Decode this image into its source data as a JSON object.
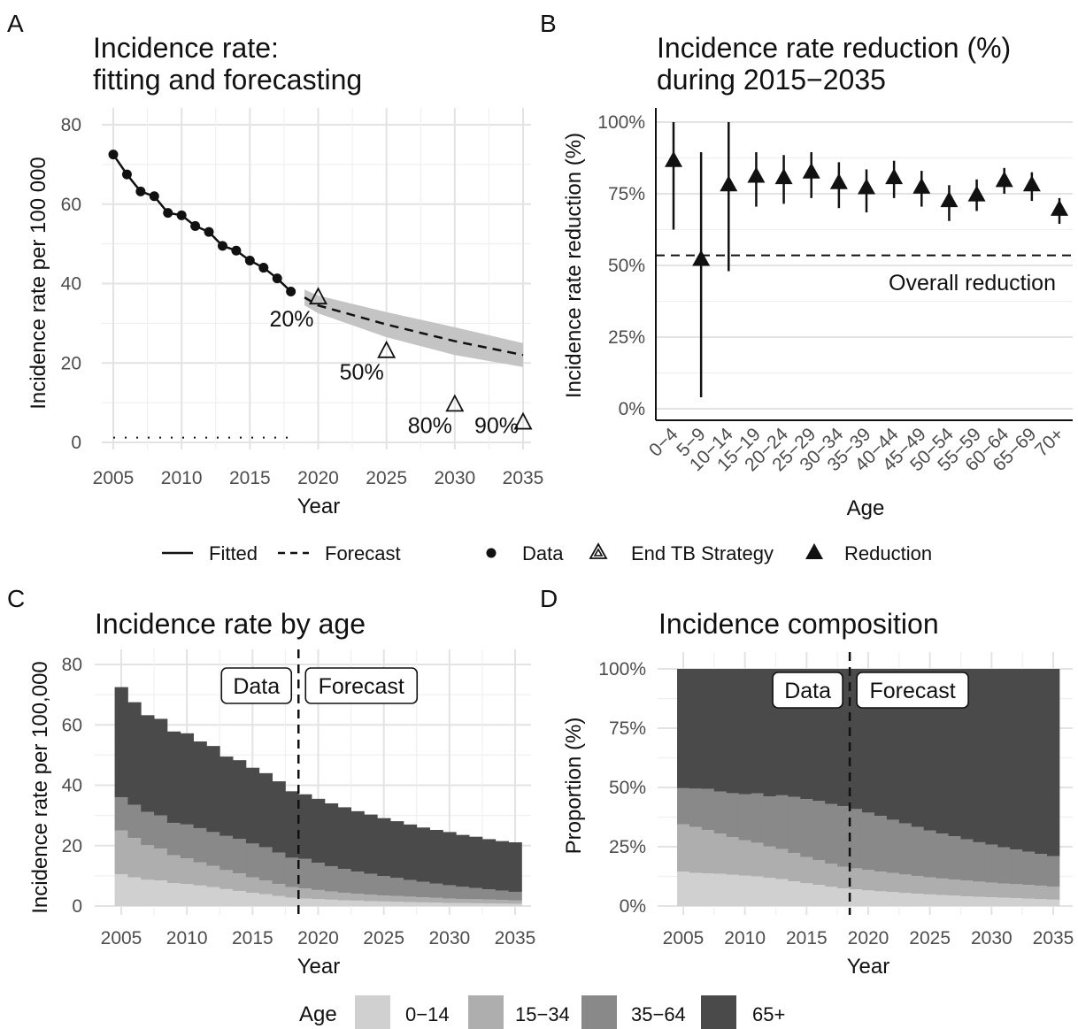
{
  "figure": {
    "panels": [
      {
        "id": "A",
        "letter": "A",
        "title_lines": [
          "Incidence rate:",
          "fitting and forecasting"
        ],
        "xlabel": "Year",
        "ylabel": "Incidence rate per 100 000"
      },
      {
        "id": "B",
        "letter": "B",
        "title_lines": [
          "Incidence rate reduction (%)",
          "during 2015−2035"
        ],
        "xlabel": "Age",
        "ylabel": "Incidence rate reduction (%)"
      },
      {
        "id": "C",
        "letter": "C",
        "title_lines": [
          "Incidence rate by age"
        ],
        "xlabel": "Year",
        "ylabel": "Incidence rate per 100,000"
      },
      {
        "id": "D",
        "letter": "D",
        "title_lines": [
          "Incidence composition"
        ],
        "xlabel": "Year",
        "ylabel": "Proportion (%)"
      }
    ],
    "legend_top": {
      "items": [
        {
          "key": "line-solid",
          "label": "Fitted"
        },
        {
          "key": "line-dashed",
          "label": "Forecast"
        },
        {
          "key": "dot",
          "label": "Data"
        },
        {
          "key": "open-triangle",
          "label": "End TB Strategy"
        },
        {
          "key": "filled-triangle",
          "label": "Reduction"
        }
      ]
    },
    "legend_bottom": {
      "title": "Age",
      "items": [
        {
          "label": "0−14",
          "color": "#d0d0d0"
        },
        {
          "label": "15−34",
          "color": "#aeaeae"
        },
        {
          "label": "35−64",
          "color": "#898989"
        },
        {
          "label": "65+",
          "color": "#4a4a4a"
        }
      ]
    },
    "colors": {
      "grid": "#e3e3e3",
      "ribbon": "#c4c4c4",
      "line": "#111111"
    }
  },
  "chart_data": [
    {
      "panel": "A",
      "type": "line",
      "x_ticks": [
        "2005",
        "2010",
        "2015",
        "2020",
        "2025",
        "2030",
        "2035"
      ],
      "y_ticks": [
        "0",
        "20",
        "40",
        "60",
        "80"
      ],
      "xlim": [
        2005,
        2035
      ],
      "ylim": [
        0,
        80
      ],
      "series": [
        {
          "name": "Data",
          "x": [
            2005,
            2006,
            2007,
            2008,
            2009,
            2010,
            2011,
            2012,
            2013,
            2014,
            2015,
            2016,
            2017,
            2018
          ],
          "y": [
            72.5,
            67.5,
            63.2,
            62.0,
            57.8,
            57.2,
            54.5,
            53.0,
            49.5,
            48.3,
            45.8,
            44.0,
            41.3,
            38.0
          ]
        },
        {
          "name": "Fitted",
          "x": [
            2005,
            2006,
            2007,
            2008,
            2009,
            2010,
            2011,
            2012,
            2013,
            2014,
            2015,
            2016,
            2017,
            2018
          ],
          "y": [
            72.5,
            67.5,
            63.2,
            62.0,
            57.8,
            57.2,
            54.5,
            53.0,
            49.5,
            48.3,
            45.8,
            44.0,
            41.3,
            38.0
          ]
        },
        {
          "name": "Forecast",
          "x": [
            2019,
            2020,
            2025,
            2030,
            2035
          ],
          "y": [
            36.5,
            34.5,
            29.7,
            25.5,
            22.0
          ],
          "lower": [
            34.5,
            32.5,
            26.5,
            22.0,
            19.0
          ],
          "upper": [
            38.5,
            37.0,
            32.8,
            29.0,
            25.0
          ]
        },
        {
          "name": "End TB Strategy",
          "x": [
            2020,
            2025,
            2030,
            2035
          ],
          "y": [
            36.5,
            23.0,
            9.5,
            5.0
          ],
          "labels": [
            "20%",
            "50%",
            "80%",
            "90%"
          ]
        },
        {
          "name": "Dotted baseline",
          "x": [
            2005,
            2018
          ],
          "y": [
            1.2,
            1.2
          ]
        }
      ]
    },
    {
      "panel": "B",
      "type": "scatter",
      "categories": [
        "0−4",
        "5−9",
        "10−14",
        "15−19",
        "20−24",
        "25−29",
        "30−34",
        "35−39",
        "40−44",
        "45−49",
        "50−54",
        "55−59",
        "60−64",
        "65−69",
        "70+"
      ],
      "y_ticks": [
        "0%",
        "25%",
        "50%",
        "75%",
        "100%"
      ],
      "ylim": [
        0,
        100
      ],
      "values": [
        86.5,
        52.0,
        78.0,
        81.0,
        80.5,
        82.5,
        78.8,
        77.0,
        80.5,
        77.2,
        72.5,
        74.5,
        79.5,
        78.0,
        69.5
      ],
      "lower": [
        62.5,
        4.0,
        48.0,
        70.5,
        71.5,
        73.5,
        70.0,
        68.5,
        73.5,
        70.5,
        65.5,
        69.0,
        75.0,
        72.5,
        64.5
      ],
      "upper": [
        100.0,
        89.5,
        100.0,
        89.5,
        88.5,
        89.5,
        86.0,
        83.5,
        86.5,
        83.0,
        78.0,
        80.0,
        84.0,
        82.5,
        73.5
      ],
      "reference_line": {
        "value": 53.5,
        "label": "Overall reduction"
      }
    },
    {
      "panel": "C",
      "type": "bar",
      "stacked": true,
      "x": [
        2005,
        2006,
        2007,
        2008,
        2009,
        2010,
        2011,
        2012,
        2013,
        2014,
        2015,
        2016,
        2017,
        2018,
        2019,
        2020,
        2021,
        2022,
        2023,
        2024,
        2025,
        2026,
        2027,
        2028,
        2029,
        2030,
        2031,
        2032,
        2033,
        2034,
        2035
      ],
      "x_ticks": [
        "2005",
        "2010",
        "2015",
        "2020",
        "2025",
        "2030",
        "2035"
      ],
      "y_ticks": [
        "0",
        "20",
        "40",
        "60",
        "80"
      ],
      "ylim": [
        0,
        80
      ],
      "series": [
        {
          "name": "0−14",
          "values": [
            10.5,
            9.5,
            8.7,
            8.5,
            7.6,
            7.3,
            6.8,
            6.3,
            5.6,
            5.0,
            4.4,
            3.9,
            3.3,
            2.8,
            2.5,
            2.3,
            2.1,
            1.9,
            1.8,
            1.6,
            1.5,
            1.4,
            1.3,
            1.2,
            1.1,
            1.0,
            0.95,
            0.9,
            0.85,
            0.8,
            0.75
          ]
        },
        {
          "name": "15−34",
          "values": [
            14.5,
            13.0,
            11.5,
            10.5,
            9.2,
            8.5,
            7.7,
            7.0,
            6.3,
            5.8,
            5.1,
            4.6,
            4.0,
            3.5,
            3.3,
            3.0,
            2.7,
            2.5,
            2.3,
            2.2,
            2.0,
            1.9,
            1.8,
            1.7,
            1.6,
            1.5,
            1.4,
            1.35,
            1.3,
            1.2,
            1.15
          ]
        },
        {
          "name": "35−64",
          "values": [
            11.0,
            11.0,
            11.0,
            11.0,
            10.7,
            11.2,
            11.3,
            11.2,
            11.3,
            11.4,
            11.2,
            11.0,
            10.4,
            9.7,
            9.8,
            9.0,
            8.4,
            7.9,
            7.3,
            6.9,
            6.4,
            6.0,
            5.5,
            5.1,
            4.7,
            4.4,
            4.0,
            3.7,
            3.4,
            3.1,
            2.8
          ]
        },
        {
          "name": "65+",
          "values": [
            36.5,
            34.0,
            32.0,
            32.0,
            30.3,
            30.2,
            28.7,
            28.5,
            26.3,
            26.1,
            25.1,
            24.5,
            23.6,
            22.0,
            21.4,
            21.2,
            20.8,
            20.4,
            20.0,
            19.6,
            19.2,
            18.8,
            18.4,
            18.0,
            17.8,
            17.6,
            17.2,
            17.0,
            16.6,
            16.4,
            16.4
          ]
        }
      ],
      "annotations": [
        {
          "label": "Data"
        },
        {
          "label": "Forecast"
        }
      ],
      "divider_x": 2018.5
    },
    {
      "panel": "D",
      "type": "bar",
      "stacked": true,
      "x": [
        2005,
        2006,
        2007,
        2008,
        2009,
        2010,
        2011,
        2012,
        2013,
        2014,
        2015,
        2016,
        2017,
        2018,
        2019,
        2020,
        2021,
        2022,
        2023,
        2024,
        2025,
        2026,
        2027,
        2028,
        2029,
        2030,
        2031,
        2032,
        2033,
        2034,
        2035
      ],
      "x_ticks": [
        "2005",
        "2010",
        "2015",
        "2020",
        "2025",
        "2030",
        "2035"
      ],
      "y_ticks": [
        "0%",
        "25%",
        "50%",
        "75%",
        "100%"
      ],
      "ylim": [
        0,
        100
      ],
      "series": [
        {
          "name": "0−14",
          "values": [
            14.5,
            14.0,
            13.8,
            13.6,
            13.2,
            12.8,
            12.5,
            11.9,
            11.3,
            10.4,
            9.6,
            8.9,
            8.1,
            7.4,
            7.0,
            6.6,
            6.2,
            5.9,
            5.5,
            5.2,
            4.9,
            4.6,
            4.4,
            4.1,
            3.9,
            3.7,
            3.5,
            3.3,
            3.1,
            2.9,
            2.7
          ]
        },
        {
          "name": "15−34",
          "values": [
            20.0,
            19.3,
            18.2,
            17.0,
            15.9,
            14.9,
            14.2,
            13.2,
            12.7,
            12.0,
            11.1,
            10.4,
            9.7,
            9.2,
            8.9,
            8.6,
            8.3,
            8.1,
            7.8,
            7.5,
            7.2,
            7.0,
            6.8,
            6.6,
            6.4,
            6.2,
            6.0,
            5.9,
            5.8,
            5.7,
            5.4
          ]
        },
        {
          "name": "35−64",
          "values": [
            15.2,
            16.2,
            17.4,
            17.7,
            18.5,
            19.5,
            20.8,
            21.1,
            22.7,
            23.6,
            24.4,
            25.0,
            25.2,
            25.5,
            25.0,
            24.2,
            23.5,
            22.4,
            21.6,
            20.7,
            19.8,
            19.0,
            18.2,
            17.4,
            16.6,
            16.0,
            15.3,
            14.6,
            14.0,
            13.4,
            12.9
          ]
        },
        {
          "name": "65+",
          "values": [
            50.3,
            50.5,
            50.6,
            51.7,
            52.4,
            52.8,
            52.5,
            53.8,
            53.3,
            54.0,
            54.9,
            55.7,
            57.0,
            57.9,
            59.1,
            60.6,
            62.0,
            63.6,
            65.1,
            66.6,
            68.1,
            69.4,
            70.6,
            71.9,
            73.1,
            74.1,
            75.2,
            76.2,
            77.1,
            78.0,
            79.0
          ]
        }
      ],
      "annotations": [
        {
          "label": "Data"
        },
        {
          "label": "Forecast"
        }
      ],
      "divider_x": 2018.5
    }
  ]
}
